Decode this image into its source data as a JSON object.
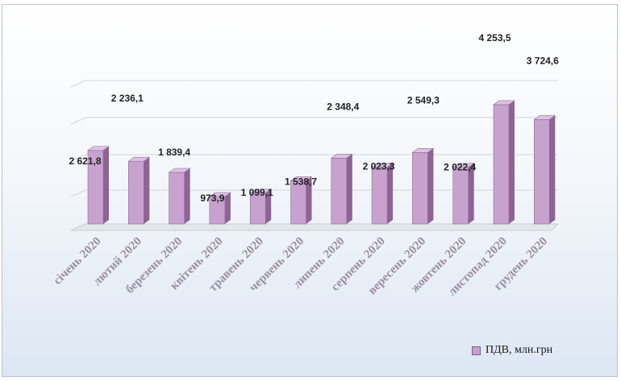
{
  "colors": {
    "bar_front": "#c8a2cf",
    "bar_side": "#8e6494",
    "bar_top": "#dcc3e1",
    "gridline": "#d3d6da",
    "label_text": "#222222",
    "category_text": "#9b8ea0"
  },
  "chart_data": {
    "type": "bar",
    "title": "",
    "xlabel": "",
    "ylabel": "",
    "ylim": [
      0,
      5000
    ],
    "grid": true,
    "legend_position": "bottom-right",
    "categories": [
      "січень 2020",
      "лютий 2020",
      "березень 2020",
      "квітень 2020",
      "травень 2020",
      "червень 2020",
      "липень 2020",
      "серпень 2020",
      "вересень 2020",
      "жовтень 2020",
      "листопад 2020",
      "грудень 2020"
    ],
    "series": [
      {
        "name": "ПДВ, млн.грн",
        "values": [
          2621.8,
          2236.1,
          1839.4,
          973.9,
          1099.1,
          1538.7,
          2348.4,
          2023.3,
          2549.3,
          2022.4,
          4253.5,
          3724.6
        ],
        "labels": [
          "2 621,8",
          "2 236,1",
          "1 839,4",
          "973,9",
          "1 099,1",
          "1 538,7",
          "2 348,4",
          "2 023,3",
          "2 549,3",
          "2 022,4",
          "4 253,5",
          "3 724,6"
        ]
      }
    ]
  }
}
